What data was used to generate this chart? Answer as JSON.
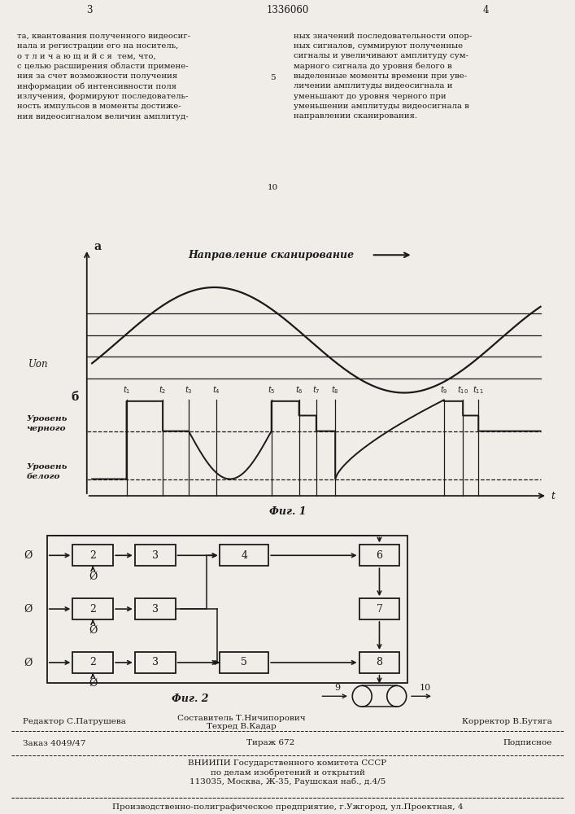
{
  "page_number_left": "3",
  "patent_number": "1336060",
  "page_number_right": "4",
  "text_left": "та, квантования полученного видеосиг-\nнала и регистрации его на носитель,\nо т л и ч а ю щ и й с я  тем, что,\nс целью расширения области примене-\nния за счет возможности получения\nинформации об интенсивности поля\nизлучения, формируют последователь-\nность импульсов в моменты достиже-\nния видеосигналом величин амплитуд-",
  "text_right": "ных значений последовательности опор-\nных сигналов, суммируют полученные\nсигналы и увеличивают амплитуду сум-\nмарного сигнала до уровня белого в\nвыделенные моменты времени при уве-\nличении амплитуды видеосигнала и\nуменьшают до уровня черного при\nуменьшении амплитуды видеосигнала в\nнаправлении сканирования.",
  "fig1_label": "Фиг. 1",
  "fig2_label": "Фиг. 2",
  "scan_direction_label": "Направление сканирование",
  "label_a": "а",
  "label_b": "б",
  "label_Uon": "Uоп",
  "label_urov_chern": "Уровень\nчерного",
  "label_urov_bel": "Уровень\nбелого",
  "label_t": "t",
  "t_labels": [
    "t1",
    "t2",
    "t3",
    "t4",
    "t5",
    "t6",
    "t7",
    "t8",
    "t9",
    "t10",
    "t11"
  ],
  "editor_line": "Редактор С.Патрушева",
  "composer_line": "Составитель Т.Ничипорович",
  "techred_line": "Техред В.Кадар",
  "corrector_line": "Корректор В.Бутяга",
  "order_line": "Заказ 4049/47",
  "tirazh_line": "Тираж 672",
  "podpisnoe_line": "Подписное",
  "vniiipi_line": "ВНИИПИ Государственного комитета СССР",
  "po_delam_line": "по делам изобретений и открытий",
  "address_line": "113035, Москва, Ж-35, Раушская наб., д.4/5",
  "factory_line": "Производственно-полиграфическое предприятие, г.Ужгород, ул.Проектная, 4",
  "bg_color": "#f0ede8",
  "line_color": "#1a1a1a"
}
